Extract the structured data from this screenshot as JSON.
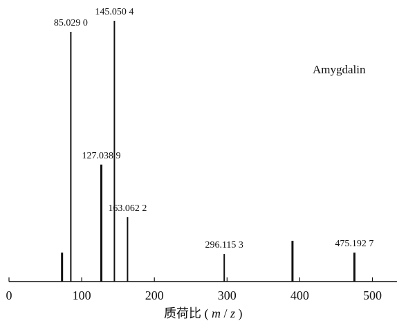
{
  "chart_data": {
    "type": "bar",
    "compound": "Amygdalin",
    "xlabel": {
      "main": "质荷比 (",
      "m": "m",
      "slash": "/",
      "z": "z",
      "close": ")"
    },
    "xlim": [
      0,
      530
    ],
    "x_ticks": [
      0,
      100,
      200,
      300,
      400,
      500
    ],
    "ylim": [
      0,
      100
    ],
    "peaks": [
      {
        "x": 73.0,
        "y": 11.0,
        "label": ""
      },
      {
        "x": 85.029,
        "y": 95.0,
        "label": "85.029 0"
      },
      {
        "x": 127.0389,
        "y": 44.5,
        "label": "127.038 9"
      },
      {
        "x": 145.0504,
        "y": 99.2,
        "label": "145.050 4"
      },
      {
        "x": 163.0622,
        "y": 24.5,
        "label": "163.062 2"
      },
      {
        "x": 296.1153,
        "y": 10.5,
        "label": "296.115 3"
      },
      {
        "x": 390.0,
        "y": 15.5,
        "label": ""
      },
      {
        "x": 475.1927,
        "y": 11.0,
        "label": "475.192 7"
      }
    ],
    "grid": false
  }
}
